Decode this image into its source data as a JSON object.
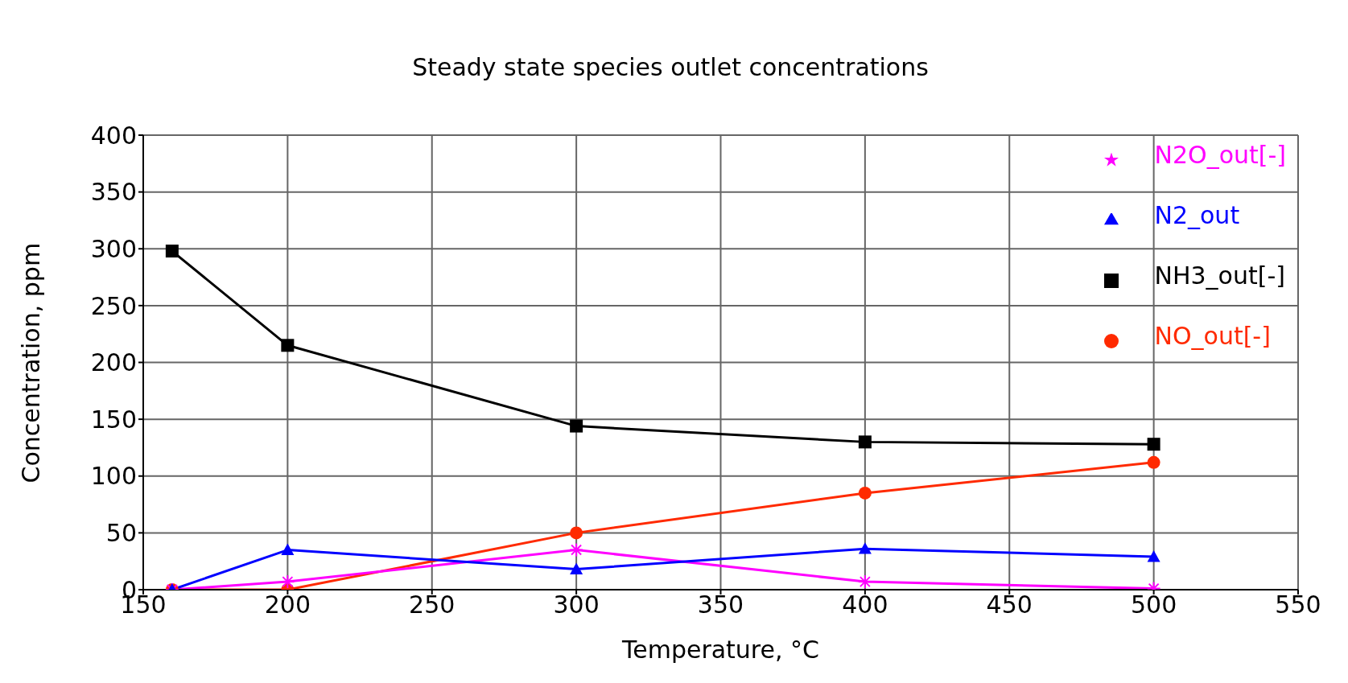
{
  "chart_data": {
    "type": "line",
    "title": "Steady state species outlet concentrations",
    "xlabel": "Temperature, °C",
    "ylabel": "Concentration, ppm",
    "x": [
      160,
      200,
      300,
      400,
      500
    ],
    "series": [
      {
        "name": "NH3_out[-]",
        "color": "#000000",
        "marker": "square",
        "values": [
          298,
          215,
          144,
          130,
          128
        ]
      },
      {
        "name": "NO_out[-]",
        "color": "#ff2a00",
        "marker": "circle",
        "values": [
          0,
          0,
          50,
          85,
          112
        ]
      },
      {
        "name": "N2O_out[-]",
        "color": "#ff00ff",
        "marker": "cross",
        "values": [
          0,
          7,
          35,
          7,
          1
        ]
      },
      {
        "name": "N2_out",
        "color": "#0000ff",
        "marker": "triangle",
        "values": [
          0,
          35,
          18,
          36,
          29
        ]
      }
    ],
    "xlim": [
      150,
      550
    ],
    "xticks": [
      150,
      200,
      250,
      300,
      350,
      400,
      450,
      500,
      550
    ],
    "ylim": [
      0,
      400
    ],
    "yticks": [
      0,
      50,
      100,
      150,
      200,
      250,
      300,
      350,
      400
    ],
    "grid": true,
    "legend": "top right",
    "line_style": "solid"
  }
}
